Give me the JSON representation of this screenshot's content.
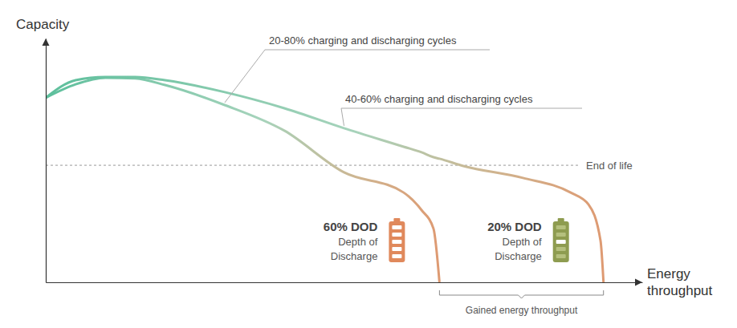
{
  "chart_data": {
    "type": "line",
    "y_label": "Capacity",
    "x_label": "Energy\nthroughput",
    "x": [
      0,
      5,
      10,
      15,
      20,
      30,
      40,
      50,
      60,
      63,
      65,
      66,
      70,
      80,
      88,
      91,
      93,
      93.5
    ],
    "xlim": [
      0,
      100
    ],
    "ylim": [
      0,
      100
    ],
    "xticks": [],
    "yticks": [],
    "tick_labels": false,
    "grid": false,
    "series": [
      {
        "name": "20-80% charging and discharging cycles",
        "color": "#5dbf9c",
        "values": [
          75.7,
          81.2,
          83.9,
          83.6,
          80.9,
          72.7,
          62.2,
          45.1,
          36.8,
          29.6,
          22,
          0,
          null,
          null,
          null,
          null,
          null,
          null
        ]
      },
      {
        "name": "40-60% charging and discharging cycles",
        "color": "#5dbf9c",
        "values": [
          75.7,
          82.9,
          84.2,
          84.2,
          82.9,
          78,
          71.4,
          63.2,
          55.6,
          53.3,
          51.3,
          50.7,
          47.7,
          42.8,
          36.8,
          31.9,
          17.1,
          0
        ]
      }
    ],
    "reference_lines": [
      {
        "value": 48,
        "label": "End of life"
      }
    ],
    "depth_of_discharge": [
      {
        "title": "60% DOD",
        "label": "Depth of\nDischarge"
      },
      {
        "title": "20% DOD",
        "label": "Depth of\nDischarge"
      }
    ],
    "span_label": "Gained energy throughput"
  }
}
